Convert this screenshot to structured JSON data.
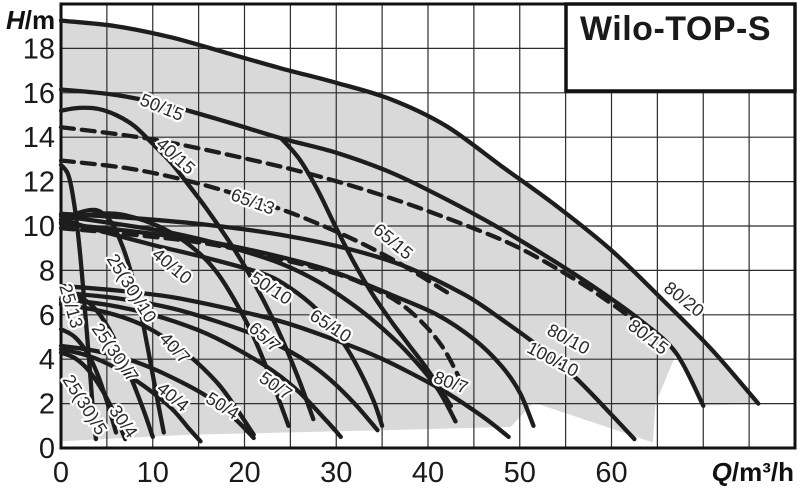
{
  "chart_data": {
    "type": "line",
    "title": "Wilo-TOP-S",
    "ylabel_symbol": "H",
    "ylabel_unit": "/m",
    "xlabel_symbol": "Q",
    "xlabel_unit": "/m³/h",
    "xlim": [
      0,
      80
    ],
    "ylim": [
      0,
      20
    ],
    "x_grid_step": 5,
    "y_grid_step": 2,
    "grid": "on",
    "legend_position": "none",
    "x_ticks": [
      0,
      10,
      20,
      30,
      40,
      50,
      60
    ],
    "y_ticks": [
      0,
      2,
      4,
      6,
      8,
      10,
      12,
      14,
      16,
      18
    ],
    "colors": {
      "curve": "#1d1d1d",
      "grid": "#2d2d2d",
      "border": "#111111",
      "shade": "#d9d9d9",
      "background": "#ffffff",
      "label": "#2b2b2b",
      "title": "#1a1a1a"
    },
    "shaded_region": {
      "upper_boundary_series": "80/20",
      "lower_boundary": [
        [
          0,
          0.3
        ],
        [
          14,
          0.6
        ],
        [
          35,
          0.8
        ],
        [
          49,
          0.95
        ],
        [
          51.5,
          2.05
        ],
        [
          64.5,
          0.25
        ],
        [
          64.8,
          2.0
        ],
        [
          67,
          4.2
        ],
        [
          70,
          1.9
        ],
        [
          76,
          2.0
        ]
      ]
    },
    "series": [
      {
        "name": "80/20",
        "style": "solid",
        "points": [
          [
            0,
            19.25
          ],
          [
            6,
            19.0
          ],
          [
            12,
            18.5
          ],
          [
            18,
            17.8
          ],
          [
            24,
            17.1
          ],
          [
            30,
            16.45
          ],
          [
            36,
            15.7
          ],
          [
            42,
            14.5
          ],
          [
            48,
            12.7
          ],
          [
            54,
            10.9
          ],
          [
            60,
            8.9
          ],
          [
            66,
            6.5
          ],
          [
            71,
            4.4
          ],
          [
            76,
            2.0
          ]
        ]
      },
      {
        "name": "80/15",
        "style": "solid",
        "points": [
          [
            0,
            16.15
          ],
          [
            6,
            15.9
          ],
          [
            12,
            15.4
          ],
          [
            18,
            14.7
          ],
          [
            24,
            13.95
          ],
          [
            30,
            13.3
          ],
          [
            36,
            12.4
          ],
          [
            42,
            11.2
          ],
          [
            48,
            9.85
          ],
          [
            54,
            8.35
          ],
          [
            59,
            7.0
          ],
          [
            63,
            5.8
          ],
          [
            67,
            4.3
          ],
          [
            70,
            1.9
          ]
        ]
      },
      {
        "name": "65/15",
        "style": "solid",
        "points": [
          [
            24,
            13.95
          ],
          [
            26,
            13.0
          ],
          [
            28,
            11.6
          ],
          [
            30,
            9.9
          ],
          [
            32,
            8.3
          ],
          [
            34,
            6.9
          ],
          [
            36,
            5.7
          ],
          [
            38,
            4.6
          ],
          [
            40,
            3.5
          ],
          [
            42.5,
            1.9
          ]
        ]
      },
      {
        "name": "40/15",
        "style": "solid",
        "points": [
          [
            0,
            15.2
          ],
          [
            2,
            15.32
          ],
          [
            4,
            15.28
          ],
          [
            6,
            15.0
          ],
          [
            8,
            14.5
          ],
          [
            10,
            13.7
          ],
          [
            12,
            12.85
          ],
          [
            14,
            11.8
          ],
          [
            16,
            10.7
          ],
          [
            18,
            9.5
          ],
          [
            20,
            8.2
          ],
          [
            22,
            6.7
          ],
          [
            24,
            5.0
          ],
          [
            26,
            3.0
          ],
          [
            27.5,
            1.3
          ]
        ]
      },
      {
        "name": "25/13",
        "style": "solid",
        "points": [
          [
            0,
            12.75
          ],
          [
            0.8,
            12.3
          ],
          [
            1.4,
            11.1
          ],
          [
            2,
            9.1
          ],
          [
            2.5,
            6.8
          ],
          [
            3,
            4.3
          ],
          [
            3.5,
            1.6
          ],
          [
            3.8,
            0.4
          ]
        ]
      },
      {
        "name": "25(30)/10",
        "style": "solid",
        "points": [
          [
            0,
            10.15
          ],
          [
            2,
            10.6
          ],
          [
            4,
            10.7
          ],
          [
            5.5,
            10.15
          ],
          [
            6.5,
            9.3
          ],
          [
            7.5,
            8.1
          ],
          [
            8.5,
            6.5
          ],
          [
            9.5,
            4.4
          ],
          [
            10.5,
            2.2
          ],
          [
            11.2,
            0.7
          ]
        ]
      },
      {
        "name": "40/10",
        "style": "solid",
        "points": [
          [
            0,
            10.2
          ],
          [
            3,
            10.5
          ],
          [
            6,
            10.55
          ],
          [
            9,
            10.25
          ],
          [
            12,
            9.7
          ],
          [
            15,
            8.8
          ],
          [
            17,
            7.9
          ],
          [
            19,
            6.6
          ],
          [
            21,
            5.0
          ],
          [
            23,
            3.0
          ],
          [
            24.8,
            1.0
          ]
        ]
      },
      {
        "name": "50/10",
        "style": "solid",
        "points": [
          [
            0,
            10.3
          ],
          [
            5,
            9.7
          ],
          [
            10,
            9.15
          ],
          [
            16,
            8.55
          ],
          [
            22,
            7.85
          ],
          [
            25,
            7.2
          ],
          [
            28,
            6.2
          ],
          [
            30,
            5.2
          ],
          [
            32,
            3.9
          ],
          [
            34,
            2.2
          ],
          [
            35,
            1.0
          ]
        ]
      },
      {
        "name": "65/10",
        "style": "solid",
        "points": [
          [
            0,
            10.45
          ],
          [
            6,
            10.1
          ],
          [
            12,
            9.7
          ],
          [
            18,
            9.1
          ],
          [
            24,
            8.3
          ],
          [
            28,
            7.5
          ],
          [
            32,
            6.4
          ],
          [
            35,
            5.4
          ],
          [
            38,
            4.2
          ],
          [
            41,
            2.7
          ],
          [
            43,
            1.2
          ]
        ]
      },
      {
        "name": "80/10",
        "style": "solid",
        "points": [
          [
            0,
            10.55
          ],
          [
            8,
            10.35
          ],
          [
            16,
            10.05
          ],
          [
            24,
            9.6
          ],
          [
            32,
            8.9
          ],
          [
            38,
            8.1
          ],
          [
            44,
            6.9
          ],
          [
            48,
            5.8
          ],
          [
            52,
            4.6
          ],
          [
            56,
            3.2
          ],
          [
            60,
            1.5
          ],
          [
            62.5,
            0.4
          ]
        ]
      },
      {
        "name": "100/10",
        "style": "solid",
        "points": [
          [
            0,
            10.1
          ],
          [
            8,
            9.75
          ],
          [
            16,
            9.3
          ],
          [
            24,
            8.6
          ],
          [
            30,
            7.9
          ],
          [
            36,
            6.9
          ],
          [
            41,
            6.0
          ],
          [
            45,
            4.9
          ],
          [
            48,
            3.7
          ],
          [
            50,
            2.5
          ],
          [
            51.5,
            1.0
          ]
        ]
      },
      {
        "name": "80/7",
        "style": "solid",
        "points": [
          [
            0,
            7.3
          ],
          [
            6,
            7.1
          ],
          [
            12,
            6.8
          ],
          [
            18,
            6.3
          ],
          [
            24,
            5.7
          ],
          [
            29,
            5.0
          ],
          [
            34,
            4.2
          ],
          [
            38,
            3.4
          ],
          [
            42,
            2.5
          ],
          [
            46,
            1.4
          ],
          [
            48.8,
            0.5
          ]
        ]
      },
      {
        "name": "65/7",
        "style": "solid",
        "points": [
          [
            0,
            7.0
          ],
          [
            6,
            6.75
          ],
          [
            12,
            6.3
          ],
          [
            17,
            5.7
          ],
          [
            22,
            4.95
          ],
          [
            26,
            4.1
          ],
          [
            29,
            3.2
          ],
          [
            32,
            2.0
          ],
          [
            34.5,
            0.8
          ]
        ]
      },
      {
        "name": "50/7",
        "style": "solid",
        "points": [
          [
            0,
            6.7
          ],
          [
            5,
            6.45
          ],
          [
            10,
            6.0
          ],
          [
            15,
            5.3
          ],
          [
            19,
            4.5
          ],
          [
            23,
            3.5
          ],
          [
            26,
            2.5
          ],
          [
            29,
            1.2
          ],
          [
            30.5,
            0.5
          ]
        ]
      },
      {
        "name": "40/7",
        "style": "solid",
        "points": [
          [
            0,
            6.45
          ],
          [
            4,
            6.2
          ],
          [
            8,
            5.7
          ],
          [
            11,
            5.05
          ],
          [
            14,
            4.15
          ],
          [
            17,
            2.95
          ],
          [
            19,
            1.85
          ],
          [
            21,
            0.6
          ]
        ]
      },
      {
        "name": "25(30)/7",
        "style": "solid",
        "points": [
          [
            0,
            6.55
          ],
          [
            1.5,
            6.8
          ],
          [
            3,
            6.55
          ],
          [
            4.5,
            5.85
          ],
          [
            6,
            4.75
          ],
          [
            7.5,
            3.3
          ],
          [
            9,
            1.7
          ],
          [
            10,
            0.5
          ]
        ]
      },
      {
        "name": "25(30)/5",
        "style": "solid",
        "points": [
          [
            0,
            5.35
          ],
          [
            1.5,
            5.0
          ],
          [
            3,
            4.2
          ],
          [
            4,
            3.3
          ],
          [
            5,
            2.1
          ],
          [
            6,
            0.7
          ]
        ]
      },
      {
        "name": "30/4",
        "style": "solid",
        "points": [
          [
            0,
            4.3
          ],
          [
            1.5,
            4.05
          ],
          [
            3,
            3.5
          ],
          [
            4.5,
            2.6
          ],
          [
            6,
            1.4
          ],
          [
            7,
            0.4
          ]
        ]
      },
      {
        "name": "40/4",
        "style": "solid",
        "points": [
          [
            0,
            4.45
          ],
          [
            3,
            4.15
          ],
          [
            6,
            3.6
          ],
          [
            9,
            2.8
          ],
          [
            12,
            1.8
          ],
          [
            14,
            0.85
          ],
          [
            15.2,
            0.3
          ]
        ]
      },
      {
        "name": "50/4",
        "style": "solid",
        "points": [
          [
            0,
            4.6
          ],
          [
            4,
            4.35
          ],
          [
            8,
            3.9
          ],
          [
            12,
            3.2
          ],
          [
            16,
            2.3
          ],
          [
            19,
            1.3
          ],
          [
            21,
            0.45
          ]
        ]
      },
      {
        "name": "dashed-a",
        "style": "dashed",
        "points": [
          [
            0,
            14.45
          ],
          [
            10,
            13.9
          ],
          [
            20,
            13.05
          ],
          [
            28,
            12.25
          ],
          [
            36,
            11.25
          ],
          [
            44,
            10.05
          ],
          [
            50,
            9.0
          ],
          [
            56,
            7.6
          ],
          [
            60,
            6.5
          ],
          [
            63,
            5.6
          ]
        ]
      },
      {
        "name": "65/13",
        "style": "dashed",
        "points": [
          [
            0,
            12.95
          ],
          [
            8,
            12.55
          ],
          [
            16,
            11.8
          ],
          [
            24,
            10.75
          ],
          [
            30,
            9.75
          ],
          [
            35,
            8.75
          ],
          [
            39,
            7.8
          ],
          [
            42.5,
            6.9
          ]
        ]
      },
      {
        "name": "dashed-b",
        "style": "dashed",
        "points": [
          [
            0,
            9.9
          ],
          [
            8,
            9.6
          ],
          [
            16,
            9.2
          ],
          [
            24,
            8.5
          ],
          [
            30,
            7.85
          ],
          [
            34,
            7.2
          ],
          [
            37,
            6.5
          ],
          [
            39.5,
            5.6
          ],
          [
            41.5,
            4.6
          ],
          [
            43,
            3.5
          ],
          [
            44,
            2.6
          ]
        ]
      }
    ],
    "curve_labels": [
      {
        "text": "50/15",
        "q": 11,
        "h": 15.35,
        "rot": 22
      },
      {
        "text": "40/15",
        "q": 12.5,
        "h": 13.15,
        "rot": 42
      },
      {
        "text": "65/13",
        "q": 20.9,
        "h": 11.1,
        "rot": 20
      },
      {
        "text": "65/15",
        "q": 36.2,
        "h": 9.3,
        "rot": 40
      },
      {
        "text": "80/20",
        "q": 67.9,
        "h": 6.7,
        "rot": 38
      },
      {
        "text": "80/15",
        "q": 64.0,
        "h": 5.0,
        "rot": 38
      },
      {
        "text": "80/10",
        "q": 55.3,
        "h": 4.9,
        "rot": 28
      },
      {
        "text": "100/10",
        "q": 53.6,
        "h": 4.0,
        "rot": 28
      },
      {
        "text": "80/7",
        "q": 42.5,
        "h": 2.95,
        "rot": 20
      },
      {
        "text": "65/10",
        "q": 29.4,
        "h": 5.5,
        "rot": 33
      },
      {
        "text": "50/10",
        "q": 22.9,
        "h": 7.2,
        "rot": 33
      },
      {
        "text": "40/10",
        "q": 12.1,
        "h": 8.2,
        "rot": 40
      },
      {
        "text": "65/7",
        "q": 22.2,
        "h": 5.0,
        "rot": 42
      },
      {
        "text": "50/7",
        "q": 23.4,
        "h": 2.8,
        "rot": 35
      },
      {
        "text": "40/7",
        "q": 12.4,
        "h": 4.5,
        "rot": 47
      },
      {
        "text": "50/4",
        "q": 17.6,
        "h": 1.9,
        "rot": 32
      },
      {
        "text": "40/4",
        "q": 12.2,
        "h": 2.3,
        "rot": 40
      },
      {
        "text": "30/4",
        "q": 6.8,
        "h": 1.2,
        "rot": 55
      },
      {
        "text": "25(30)/5",
        "q": 2.6,
        "h": 1.95,
        "rot": 58
      },
      {
        "text": "25(30)/7",
        "q": 5.9,
        "h": 4.3,
        "rot": 55
      },
      {
        "text": "25(30)/10",
        "q": 7.7,
        "h": 7.2,
        "rot": 58
      },
      {
        "text": "25/13",
        "q": 1.1,
        "h": 6.4,
        "rot": 74
      }
    ]
  }
}
